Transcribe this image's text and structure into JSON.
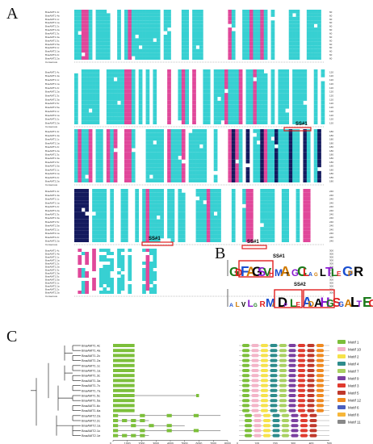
{
  "panels": {
    "a_label": "A",
    "b_label": "B",
    "c_label": "C"
  },
  "alignment": {
    "sequence_names": [
      "BnaAMT1.4c",
      "BnaAMT1.4a",
      "BnaAMT1.1c",
      "BnaAMT1.1a",
      "BnaAMT1.2c",
      "BnaAMT1.2a",
      "BnaAMT1.3c",
      "BnaAMT1.3a",
      "BnaAMT1.5c",
      "BnaAMT1.5a",
      "BnaAMT2.1c",
      "BnaAMT2.1a",
      "BnaAMT2.2c",
      "BnaAMT2.2a"
    ],
    "consensus_label": "Consensus",
    "ss_label": "SS#1",
    "ss2_label": "SS#1",
    "ss3_label": "SS#1"
  },
  "logo": {
    "ss1_label": "SS#1",
    "ss2_label": "SS#2"
  },
  "gene_structure": {
    "genes": [
      "BnaAMT1.4c",
      "BnaAMT1.4a",
      "BnaAMT1.2c",
      "BnaAMT1.2a",
      "BnaAMT1.1c",
      "BnaAMT1.1a",
      "BnaAMT1.3c",
      "BnaAMT1.3a",
      "BnaAMT1.7c",
      "BnaAMT1.7a",
      "BnaAMT1.5c",
      "BnaAMT1.5a",
      "BnaAMT1.6c",
      "BnaAMT1.6a",
      "BnaAMT2.2a",
      "BnaAMT2.2c",
      "BnaAMT2.1a",
      "BnaAMT2.1c",
      "BnaAMT2.1e"
    ],
    "axis_ticks": [
      "0",
      "1000",
      "2000",
      "3000",
      "4000",
      "5000",
      "6000",
      "7000",
      "8000"
    ]
  },
  "motif_axis_ticks": [
    "0",
    "100",
    "200",
    "300",
    "400",
    "500"
  ],
  "motif_legend": [
    "Motif 1",
    "Motif 10",
    "Motif 2",
    "Motif 4",
    "Motif 7",
    "Motif 9",
    "Motif 3",
    "Motif 5",
    "Motif 12",
    "Motif 6",
    "Motif 8",
    "Motif 11"
  ],
  "motif_colors": [
    "#7cbf3a",
    "#f3b4c8",
    "#f6e24a",
    "#2d8c8c",
    "#a8d060",
    "#7a3fa0",
    "#e03a2e",
    "#c0392b",
    "#f08a20",
    "#4a5fbf",
    "#f6b63a",
    "#888888"
  ]
}
